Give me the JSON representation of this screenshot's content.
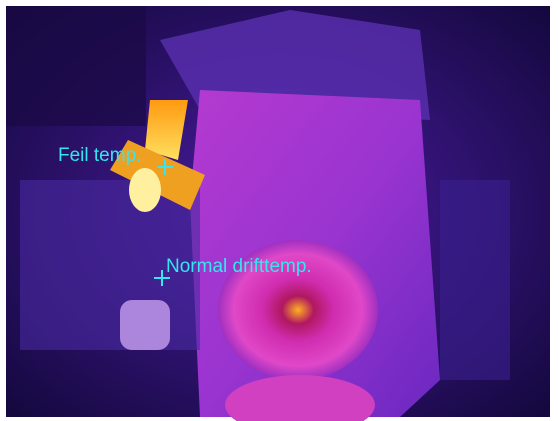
{
  "annotations": [
    {
      "label": "Feil temp."
    },
    {
      "label": "Normal drifttemp."
    }
  ]
}
